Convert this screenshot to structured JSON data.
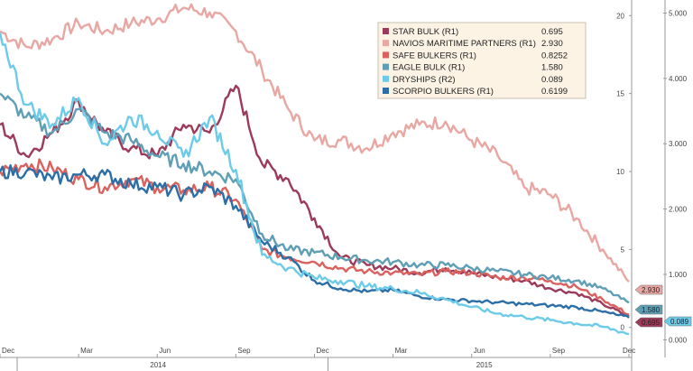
{
  "chart_data": {
    "type": "line",
    "title": "",
    "xlabel": "",
    "x": [
      "2013-12",
      "2014-01",
      "2014-02",
      "2014-03",
      "2014-04",
      "2014-05",
      "2014-06",
      "2014-07",
      "2014-08",
      "2014-09",
      "2014-10",
      "2014-11",
      "2014-12",
      "2015-01",
      "2015-02",
      "2015-03",
      "2015-04",
      "2015-05",
      "2015-06",
      "2015-07",
      "2015-08",
      "2015-09",
      "2015-10",
      "2015-11",
      "2015-12"
    ],
    "x_tick_labels": [
      "Dec",
      "Mar",
      "Jun",
      "Sep",
      "Dec",
      "Mar",
      "Jun",
      "Sep",
      "Dec"
    ],
    "x_ticks": [
      "2013-12",
      "2014-03",
      "2014-06",
      "2014-09",
      "2014-12",
      "2015-03",
      "2015-06",
      "2015-09",
      "2015-12"
    ],
    "year_labels": [
      "2014",
      "2015"
    ],
    "axes": {
      "R1": {
        "ylabel": "",
        "ylim": [
          -1,
          21
        ],
        "ticks": [
          0,
          5,
          10,
          15,
          20
        ]
      },
      "R2": {
        "ylabel": "",
        "ylim": [
          -0.05,
          5.2
        ],
        "ticks": [
          "0.000",
          "1.000",
          "2.000",
          "3.000",
          "4.000",
          "5.000"
        ]
      }
    },
    "grid": false,
    "legend_position": "top-right",
    "series": [
      {
        "name": "STAR BULK (R1)",
        "axis": "R1",
        "color": "#9c3a5a",
        "last": "0.695",
        "values": [
          13.0,
          11.0,
          12.5,
          14.5,
          12.5,
          11.5,
          11.0,
          13.0,
          12.5,
          15.5,
          10.5,
          9.5,
          7.0,
          4.5,
          4.0,
          3.8,
          3.5,
          3.8,
          3.5,
          3.2,
          3.0,
          2.5,
          2.2,
          1.5,
          0.7
        ]
      },
      {
        "name": "NAVIOS MARITIME PARTNERS (R1)",
        "axis": "R1",
        "color": "#e8a7a2",
        "last": "2.930",
        "values": [
          19.0,
          18.0,
          18.5,
          19.5,
          19.0,
          19.5,
          19.8,
          20.5,
          20.2,
          19.0,
          16.5,
          14.0,
          12.0,
          12.0,
          11.5,
          12.5,
          13.0,
          13.2,
          12.0,
          11.0,
          9.0,
          8.5,
          7.0,
          5.0,
          2.93
        ]
      },
      {
        "name": "SAFE BULKERS (R1)",
        "axis": "R1",
        "color": "#d9625e",
        "last": "0.8252",
        "values": [
          10.0,
          10.5,
          10.2,
          9.5,
          9.0,
          9.5,
          9.0,
          8.8,
          9.0,
          8.2,
          5.0,
          4.5,
          4.2,
          3.8,
          3.6,
          3.5,
          3.4,
          3.6,
          3.5,
          3.2,
          3.2,
          3.0,
          2.6,
          1.8,
          0.83
        ]
      },
      {
        "name": "EAGLE BULK (R1)",
        "axis": "R1",
        "color": "#5e9fb5",
        "last": "1.580",
        "values": [
          15.0,
          13.5,
          12.5,
          14.0,
          12.5,
          12.0,
          11.0,
          10.5,
          10.0,
          9.5,
          6.0,
          5.0,
          4.8,
          4.5,
          4.3,
          4.2,
          4.0,
          4.0,
          3.8,
          3.6,
          3.4,
          3.2,
          3.0,
          2.5,
          1.58
        ]
      },
      {
        "name": "DRYSHIPS (R2)",
        "axis": "R2",
        "color": "#6ccbe8",
        "last": "0.089",
        "values": [
          4.7,
          3.6,
          3.3,
          3.7,
          3.0,
          3.4,
          3.2,
          2.8,
          3.4,
          2.6,
          1.3,
          1.1,
          0.95,
          0.9,
          0.82,
          0.78,
          0.72,
          0.62,
          0.5,
          0.4,
          0.35,
          0.3,
          0.25,
          0.2,
          0.089
        ]
      },
      {
        "name": "SCORPIO BULKERS (R1)",
        "axis": "R1",
        "color": "#2c6ea6",
        "last": "0.6199",
        "values": [
          10.0,
          10.0,
          9.5,
          9.8,
          9.8,
          9.2,
          9.0,
          8.5,
          9.0,
          7.8,
          5.5,
          4.5,
          3.0,
          2.5,
          2.3,
          2.4,
          2.0,
          1.8,
          1.7,
          1.6,
          1.5,
          1.4,
          1.3,
          1.0,
          0.62
        ]
      }
    ]
  }
}
